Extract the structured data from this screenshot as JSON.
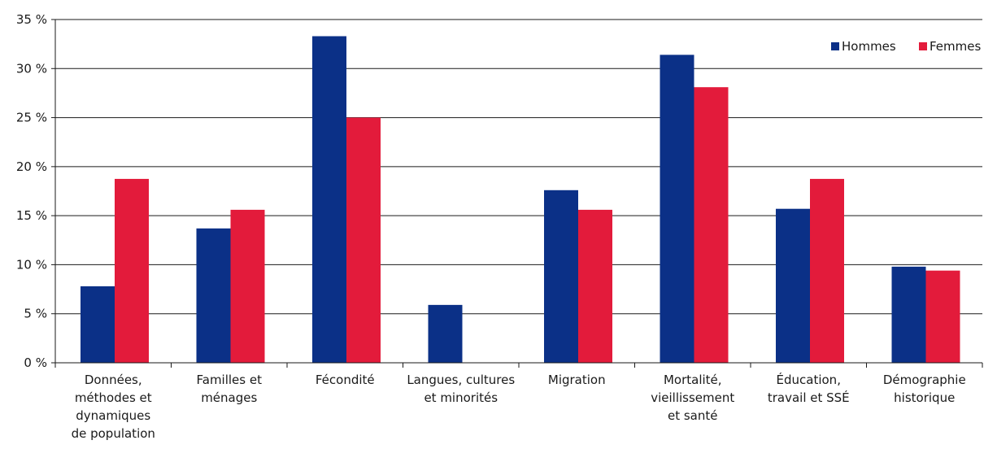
{
  "chart_data": {
    "type": "bar",
    "title": "",
    "xlabel": "",
    "ylabel": "",
    "ylim": [
      0,
      35
    ],
    "y_ticks": [
      0,
      5,
      10,
      15,
      20,
      25,
      30,
      35
    ],
    "y_tick_labels": [
      "0 %",
      "5 %",
      "10 %",
      "15 %",
      "20 %",
      "25 %",
      "30 %",
      "35 %"
    ],
    "grid": true,
    "legend_position": "top-right",
    "categories": [
      [
        "Données,",
        "méthodes et",
        "dynamiques",
        "de population"
      ],
      [
        "Familles et",
        "ménages"
      ],
      [
        "Fécondité"
      ],
      [
        "Langues, cultures",
        "et minorités"
      ],
      [
        "Migration"
      ],
      [
        "Mortalité,",
        "vieillissement",
        "et santé"
      ],
      [
        "Éducation,",
        "travail et SSÉ"
      ],
      [
        "Démographie",
        "historique"
      ]
    ],
    "series": [
      {
        "name": "Hommes",
        "color": "#0b3087",
        "values": [
          7.8,
          13.7,
          33.3,
          5.9,
          17.6,
          31.4,
          15.7,
          9.8
        ]
      },
      {
        "name": "Femmes",
        "color": "#e31b3b",
        "values": [
          18.75,
          15.6,
          25.0,
          0,
          15.6,
          28.1,
          18.75,
          9.4
        ]
      }
    ]
  }
}
